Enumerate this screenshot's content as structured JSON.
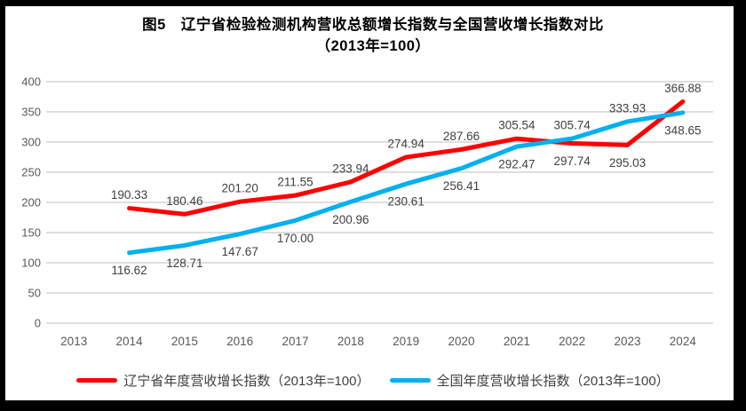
{
  "title": {
    "line1": "图5　辽宁省检验检测机构营收总额增长指数与全国营收增长指数对比",
    "line2": "（2013年=100）"
  },
  "chart_data": {
    "type": "line",
    "categories": [
      "2013",
      "2014",
      "2015",
      "2016",
      "2017",
      "2018",
      "2019",
      "2020",
      "2021",
      "2022",
      "2023",
      "2024"
    ],
    "series": [
      {
        "name": "辽宁省年度营收增长指数（2013年=100）",
        "color": "#FF0000",
        "values": [
          null,
          190.33,
          180.46,
          201.2,
          211.55,
          233.94,
          274.94,
          287.66,
          305.54,
          297.74,
          295.03,
          366.88
        ],
        "label_sides": [
          null,
          "above",
          "above",
          "above",
          "above",
          "above",
          "above",
          "above",
          "above",
          "below",
          "below",
          "above"
        ]
      },
      {
        "name": "全国年度营收增长指数（2013年=100）",
        "color": "#00B0F0",
        "values": [
          null,
          116.62,
          128.71,
          147.67,
          170.0,
          200.96,
          230.61,
          256.41,
          292.47,
          305.74,
          333.93,
          348.65
        ],
        "label_sides": [
          null,
          "below",
          "below",
          "below",
          "below",
          "below",
          "below",
          "below",
          "below",
          "above",
          "above",
          "below"
        ]
      }
    ],
    "ylim": [
      0,
      400
    ],
    "y_tick_step": 50,
    "grid": "horizontal-only",
    "legend_position": "bottom",
    "data_labels": "shown, two decimals",
    "colors": {
      "grid": "#D9D9D9",
      "tick_text": "#595959",
      "data_label_text": "#404040",
      "frame": "#000000"
    }
  }
}
